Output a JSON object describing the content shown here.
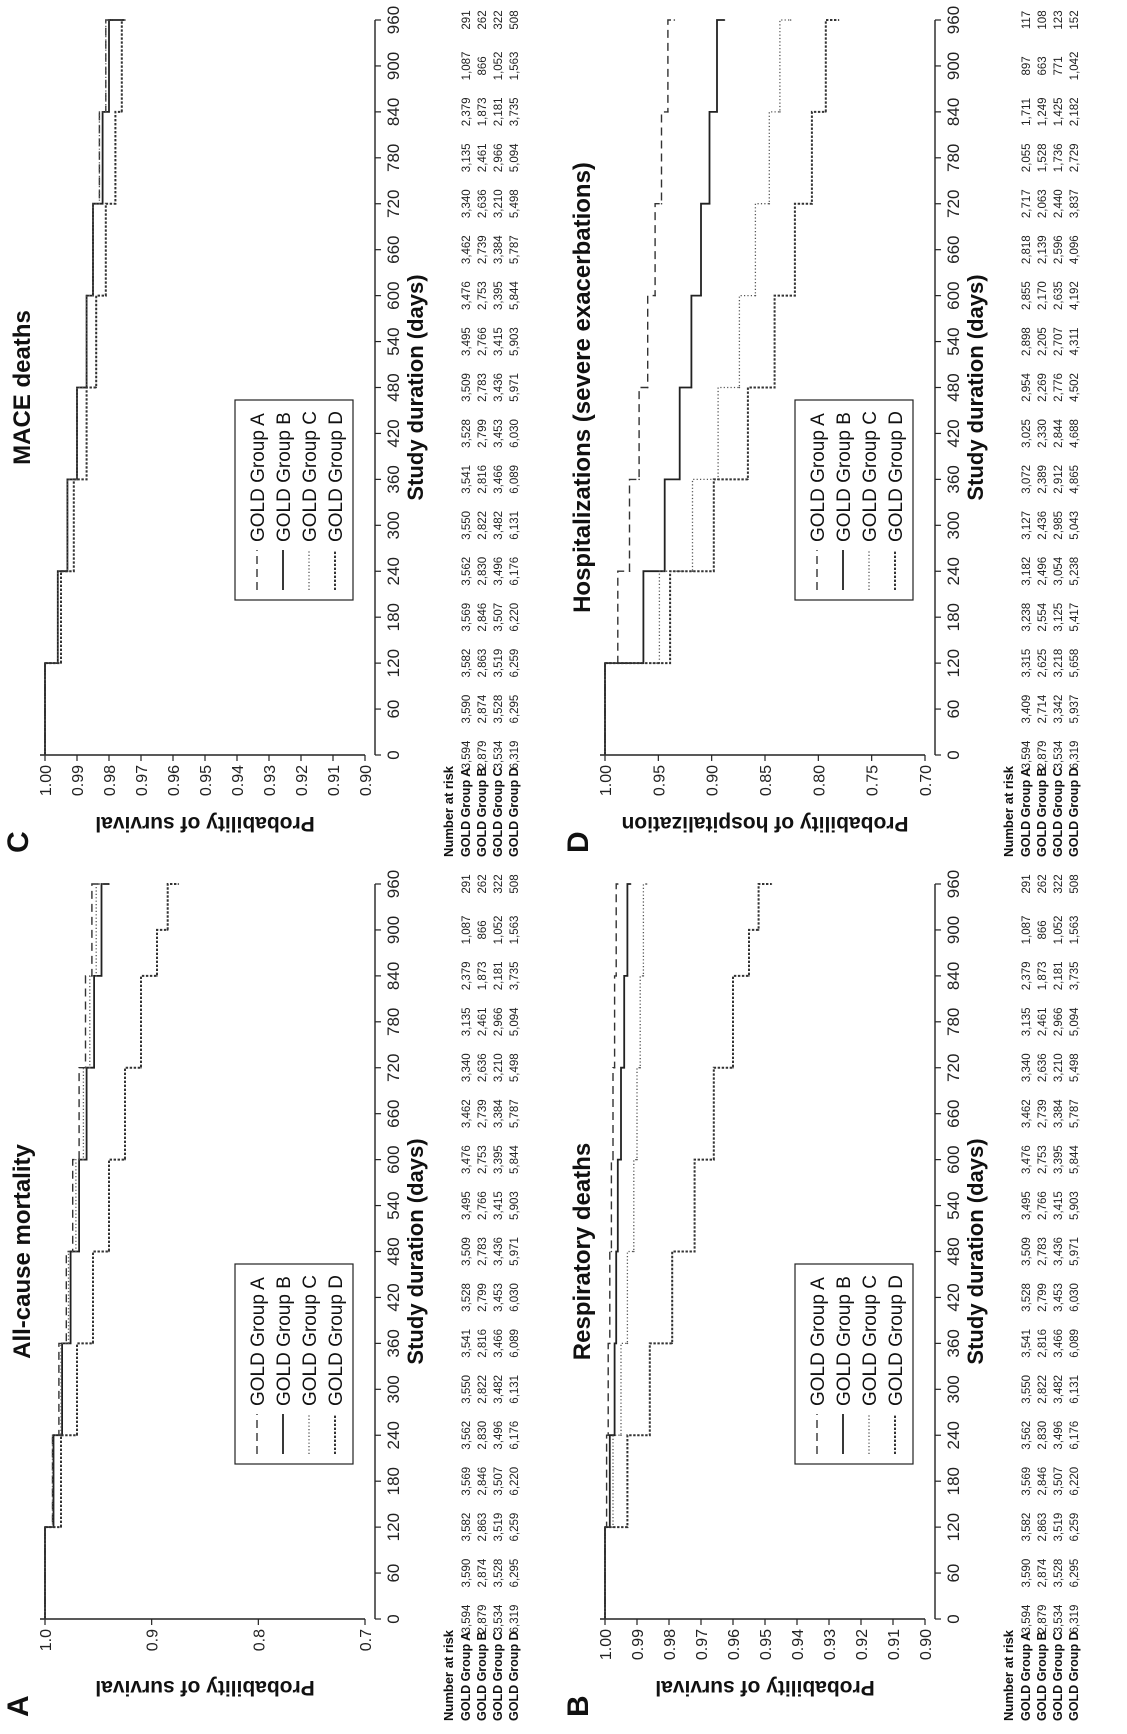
{
  "orientation": "rotated 90 degrees counter-clockwise",
  "time_label": "Study duration (days)",
  "risk_table_title": "Number at risk",
  "risk_times": [
    0,
    60,
    120,
    180,
    240,
    300,
    360,
    420,
    480,
    540,
    600,
    660,
    720,
    780,
    840,
    900,
    960
  ],
  "risk_table_default": [
    {
      "group": "GOLD Group A",
      "values": [
        "3,594",
        "3,590",
        "3,582",
        "3,569",
        "3,562",
        "3,550",
        "3,541",
        "3,528",
        "3,509",
        "3,495",
        "3,476",
        "3,462",
        "3,340",
        "3,135",
        "2,379",
        "1,087",
        "291"
      ]
    },
    {
      "group": "GOLD Group B",
      "values": [
        "2,879",
        "2,874",
        "2,863",
        "2,846",
        "2,830",
        "2,822",
        "2,816",
        "2,799",
        "2,783",
        "2,766",
        "2,753",
        "2,739",
        "2,636",
        "2,461",
        "1,873",
        "866",
        "262"
      ]
    },
    {
      "group": "GOLD Group C",
      "values": [
        "3,534",
        "3,528",
        "3,519",
        "3,507",
        "3,496",
        "3,482",
        "3,466",
        "3,453",
        "3,436",
        "3,415",
        "3,395",
        "3,384",
        "3,210",
        "2,966",
        "2,181",
        "1,052",
        "322"
      ]
    },
    {
      "group": "GOLD Group D",
      "values": [
        "6,319",
        "6,295",
        "6,259",
        "6,220",
        "6,176",
        "6,131",
        "6,089",
        "6,030",
        "5,971",
        "5,903",
        "5,844",
        "5,787",
        "5,498",
        "5,094",
        "3,735",
        "1,563",
        "508"
      ]
    }
  ],
  "chart_data": [
    {
      "panel": "A",
      "type": "line",
      "title": "All-cause mortality",
      "xlabel": "Study duration (days)",
      "ylabel": "Probability of survival",
      "xlim": [
        0,
        960
      ],
      "ylim": [
        0.7,
        1.0
      ],
      "xticks": [
        0,
        60,
        120,
        180,
        240,
        300,
        360,
        420,
        480,
        540,
        600,
        660,
        720,
        780,
        840,
        900,
        960
      ],
      "yticks": [
        "1.0",
        "0.9",
        "0.8",
        "0.7"
      ],
      "legend": "lower-left",
      "series": [
        {
          "name": "GOLD Group A",
          "style": "dashed",
          "x": [
            0,
            120,
            240,
            360,
            480,
            600,
            720,
            840,
            960
          ],
          "y": [
            1.0,
            0.993,
            0.987,
            0.98,
            0.974,
            0.968,
            0.962,
            0.956,
            0.95
          ]
        },
        {
          "name": "GOLD Group B",
          "style": "solid",
          "x": [
            0,
            120,
            240,
            360,
            480,
            600,
            720,
            840,
            960
          ],
          "y": [
            1.0,
            0.992,
            0.984,
            0.976,
            0.968,
            0.961,
            0.954,
            0.947,
            0.94
          ]
        },
        {
          "name": "GOLD Group C",
          "style": "dotted",
          "x": [
            0,
            120,
            240,
            360,
            480,
            600,
            720,
            840,
            960
          ],
          "y": [
            1.0,
            0.993,
            0.985,
            0.978,
            0.971,
            0.964,
            0.958,
            0.952,
            0.946
          ]
        },
        {
          "name": "GOLD Group D",
          "style": "densely-dotted",
          "x": [
            0,
            120,
            240,
            360,
            480,
            600,
            720,
            840,
            900,
            960
          ],
          "y": [
            1.0,
            0.985,
            0.97,
            0.955,
            0.94,
            0.925,
            0.91,
            0.895,
            0.885,
            0.875
          ]
        }
      ],
      "risk_table": "default"
    },
    {
      "panel": "B",
      "type": "line",
      "title": "Respiratory deaths",
      "xlabel": "Study duration (days)",
      "ylabel": "Probability of survival",
      "xlim": [
        0,
        960
      ],
      "ylim": [
        0.9,
        1.0
      ],
      "xticks": [
        0,
        60,
        120,
        180,
        240,
        300,
        360,
        420,
        480,
        540,
        600,
        660,
        720,
        780,
        840,
        900,
        960
      ],
      "yticks": [
        "1.00",
        "0.99",
        "0.98",
        "0.97",
        "0.96",
        "0.95",
        "0.94",
        "0.93",
        "0.92",
        "0.91",
        "0.90"
      ],
      "legend": "lower-left",
      "series": [
        {
          "name": "GOLD Group A",
          "style": "dashed",
          "x": [
            0,
            120,
            240,
            360,
            480,
            600,
            720,
            840,
            960
          ],
          "y": [
            1.0,
            0.9995,
            0.999,
            0.9985,
            0.998,
            0.9975,
            0.997,
            0.9965,
            0.996
          ]
        },
        {
          "name": "GOLD Group B",
          "style": "solid",
          "x": [
            0,
            120,
            240,
            360,
            480,
            600,
            720,
            840,
            960
          ],
          "y": [
            1.0,
            0.9985,
            0.997,
            0.9965,
            0.996,
            0.995,
            0.994,
            0.993,
            0.992
          ]
        },
        {
          "name": "GOLD Group C",
          "style": "dotted",
          "x": [
            0,
            120,
            240,
            360,
            480,
            600,
            720,
            840,
            960
          ],
          "y": [
            1.0,
            0.9975,
            0.995,
            0.993,
            0.991,
            0.99,
            0.989,
            0.988,
            0.987
          ]
        },
        {
          "name": "GOLD Group D",
          "style": "densely-dotted",
          "x": [
            0,
            120,
            240,
            360,
            480,
            600,
            720,
            840,
            900,
            960
          ],
          "y": [
            1.0,
            0.993,
            0.986,
            0.979,
            0.972,
            0.966,
            0.96,
            0.955,
            0.952,
            0.948
          ]
        }
      ],
      "risk_table": "default"
    },
    {
      "panel": "C",
      "type": "line",
      "title": "MACE deaths",
      "xlabel": "Study duration (days)",
      "ylabel": "Probability of survival",
      "xlim": [
        0,
        960
      ],
      "ylim": [
        0.9,
        1.0
      ],
      "xticks": [
        0,
        60,
        120,
        180,
        240,
        300,
        360,
        420,
        480,
        540,
        600,
        660,
        720,
        780,
        840,
        900,
        960
      ],
      "yticks": [
        "1.00",
        "0.99",
        "0.98",
        "0.97",
        "0.96",
        "0.95",
        "0.94",
        "0.93",
        "0.92",
        "0.91",
        "0.90"
      ],
      "legend": "lower-left",
      "series": [
        {
          "name": "GOLD Group A",
          "style": "dashed",
          "x": [
            0,
            120,
            240,
            360,
            480,
            600,
            720,
            840,
            960
          ],
          "y": [
            1.0,
            0.996,
            0.993,
            0.99,
            0.987,
            0.985,
            0.983,
            0.981,
            0.979
          ]
        },
        {
          "name": "GOLD Group B",
          "style": "solid",
          "x": [
            0,
            120,
            240,
            360,
            480,
            600,
            720,
            840,
            960
          ],
          "y": [
            1.0,
            0.996,
            0.993,
            0.99,
            0.987,
            0.985,
            0.982,
            0.98,
            0.976
          ]
        },
        {
          "name": "GOLD Group C",
          "style": "dotted",
          "x": [
            0,
            120,
            240,
            360,
            480,
            600,
            720,
            840,
            960
          ],
          "y": [
            1.0,
            0.996,
            0.993,
            0.99,
            0.987,
            0.985,
            0.983,
            0.981,
            0.98
          ]
        },
        {
          "name": "GOLD Group D",
          "style": "densely-dotted",
          "x": [
            0,
            120,
            240,
            360,
            480,
            600,
            720,
            840,
            960
          ],
          "y": [
            1.0,
            0.995,
            0.991,
            0.987,
            0.984,
            0.981,
            0.978,
            0.976,
            0.975
          ]
        }
      ],
      "risk_table": "default"
    },
    {
      "panel": "D",
      "type": "line",
      "title": "Hospitalizations (severe exacerbations)",
      "xlabel": "Study duration (days)",
      "ylabel": "Probability of hospitalization",
      "xlim": [
        0,
        960
      ],
      "ylim": [
        0.7,
        1.0
      ],
      "xticks": [
        0,
        60,
        120,
        180,
        240,
        300,
        360,
        420,
        480,
        540,
        600,
        660,
        720,
        780,
        840,
        900,
        960
      ],
      "yticks": [
        "1.00",
        "0.95",
        "0.90",
        "0.85",
        "0.80",
        "0.75",
        "0.70"
      ],
      "legend": "lower-left",
      "series": [
        {
          "name": "GOLD Group A",
          "style": "dashed",
          "x": [
            0,
            120,
            240,
            360,
            480,
            600,
            720,
            840,
            960
          ],
          "y": [
            1.0,
            0.988,
            0.977,
            0.968,
            0.96,
            0.953,
            0.947,
            0.941,
            0.935
          ]
        },
        {
          "name": "GOLD Group B",
          "style": "solid",
          "x": [
            0,
            120,
            240,
            360,
            480,
            600,
            720,
            840,
            960
          ],
          "y": [
            1.0,
            0.964,
            0.944,
            0.93,
            0.919,
            0.91,
            0.902,
            0.895,
            0.888
          ]
        },
        {
          "name": "GOLD Group C",
          "style": "dotted",
          "x": [
            0,
            120,
            240,
            360,
            480,
            600,
            720,
            840,
            960
          ],
          "y": [
            1.0,
            0.949,
            0.918,
            0.894,
            0.874,
            0.859,
            0.846,
            0.836,
            0.826
          ]
        },
        {
          "name": "GOLD Group D",
          "style": "densely-dotted",
          "x": [
            0,
            120,
            240,
            360,
            480,
            600,
            720,
            840,
            960
          ],
          "y": [
            1.0,
            0.939,
            0.898,
            0.866,
            0.841,
            0.822,
            0.806,
            0.793,
            0.781
          ]
        }
      ],
      "risk_table": [
        {
          "group": "GOLD Group A",
          "values": [
            "3,594",
            "3,409",
            "3,315",
            "3,238",
            "3,182",
            "3,127",
            "3,072",
            "3,025",
            "2,954",
            "2,898",
            "2,855",
            "2,818",
            "2,717",
            "2,055",
            "1,711",
            "897",
            "117"
          ]
        },
        {
          "group": "GOLD Group B",
          "values": [
            "2,879",
            "2,714",
            "2,625",
            "2,554",
            "2,496",
            "2,436",
            "2,389",
            "2,330",
            "2,269",
            "2,205",
            "2,170",
            "2,139",
            "2,063",
            "1,528",
            "1,249",
            "663",
            "108"
          ]
        },
        {
          "group": "GOLD Group C",
          "values": [
            "3,534",
            "3,342",
            "3,218",
            "3,125",
            "3,054",
            "2,985",
            "2,912",
            "2,844",
            "2,776",
            "2,707",
            "2,635",
            "2,596",
            "2,440",
            "1,736",
            "1,425",
            "771",
            "123"
          ]
        },
        {
          "group": "GOLD Group D",
          "values": [
            "6,319",
            "5,937",
            "5,658",
            "5,417",
            "5,238",
            "5,043",
            "4,865",
            "4,688",
            "4,502",
            "4,311",
            "4,192",
            "4,096",
            "3,837",
            "2,729",
            "2,182",
            "1,042",
            "152"
          ]
        }
      ]
    }
  ]
}
